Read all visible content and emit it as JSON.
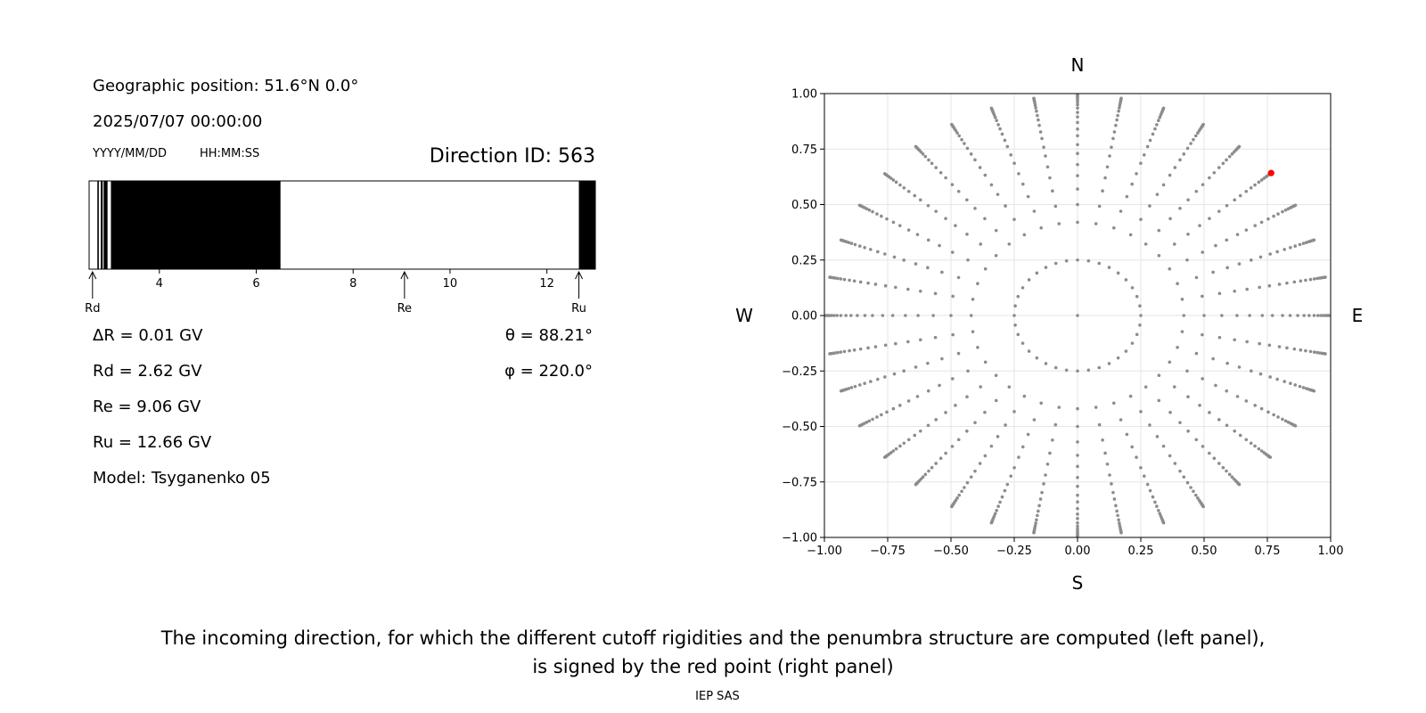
{
  "info": {
    "geo_position": "Geographic position: 51.6°N 0.0°",
    "datetime": "2025/07/07 00:00:00",
    "date_hint": "YYYY/MM/DD",
    "time_hint": "HH:MM:SS",
    "direction_id": "Direction ID: 563"
  },
  "values": {
    "delta_r": "ΔR = 0.01 GV",
    "rd": "Rd = 2.62 GV",
    "re": "Re = 9.06 GV",
    "ru": "Ru = 12.66 GV",
    "model": "Model: Tsyganenko 05",
    "theta": "θ = 88.21°",
    "phi": "φ = 220.0°"
  },
  "chart_data": [
    {
      "type": "bar",
      "name": "penumbra",
      "xlim": [
        2.55,
        13.0
      ],
      "ticks": [
        4,
        6,
        8,
        10,
        12
      ],
      "tick_labels": [
        "4",
        "6",
        "8",
        "10",
        "12"
      ],
      "forbidden_intervals": [
        [
          2.72,
          2.75
        ],
        [
          2.79,
          2.83
        ],
        [
          2.85,
          2.93
        ],
        [
          3.0,
          6.5
        ],
        [
          12.66,
          13.0
        ]
      ],
      "markers": [
        {
          "label": "Rd",
          "value": 2.62
        },
        {
          "label": "Re",
          "value": 9.06
        },
        {
          "label": "Ru",
          "value": 12.66
        }
      ],
      "bar_fill_color": "#000000",
      "background_color": "#ffffff"
    },
    {
      "type": "scatter",
      "name": "direction-grid",
      "xlim": [
        -1.0,
        1.0
      ],
      "ylim": [
        -1.0,
        1.0
      ],
      "ticks": [
        -1.0,
        -0.75,
        -0.5,
        -0.25,
        0.0,
        0.25,
        0.5,
        0.75,
        1.0
      ],
      "tick_labels": [
        "−1.00",
        "−0.75",
        "−0.50",
        "−0.25",
        "0.00",
        "0.25",
        "0.50",
        "0.75",
        "1.00"
      ],
      "grid": true,
      "compass": {
        "north": "N",
        "south": "S",
        "west": "W",
        "east": "E"
      },
      "grid_points": {
        "center": [
          0,
          0
        ],
        "inner_ring_radius": 0.25,
        "inner_ring_count": 36,
        "spoke_count": 36,
        "spoke_radii": [
          0.42,
          0.5,
          0.57,
          0.63,
          0.68,
          0.73,
          0.77,
          0.81,
          0.84,
          0.87,
          0.895,
          0.915,
          0.935,
          0.95,
          0.962,
          0.972,
          0.98,
          0.986,
          0.99,
          0.994
        ],
        "point_color": "#8c8c8c"
      },
      "selected_point": {
        "x": 0.765,
        "y": 0.642,
        "color": "#ff0000"
      }
    }
  ],
  "caption": {
    "line1": "The incoming direction, for which the different cutoff rigidities and the penumbra structure are computed (left panel),",
    "line2": "is signed by the red point (right panel)"
  },
  "footer": "IEP SAS"
}
